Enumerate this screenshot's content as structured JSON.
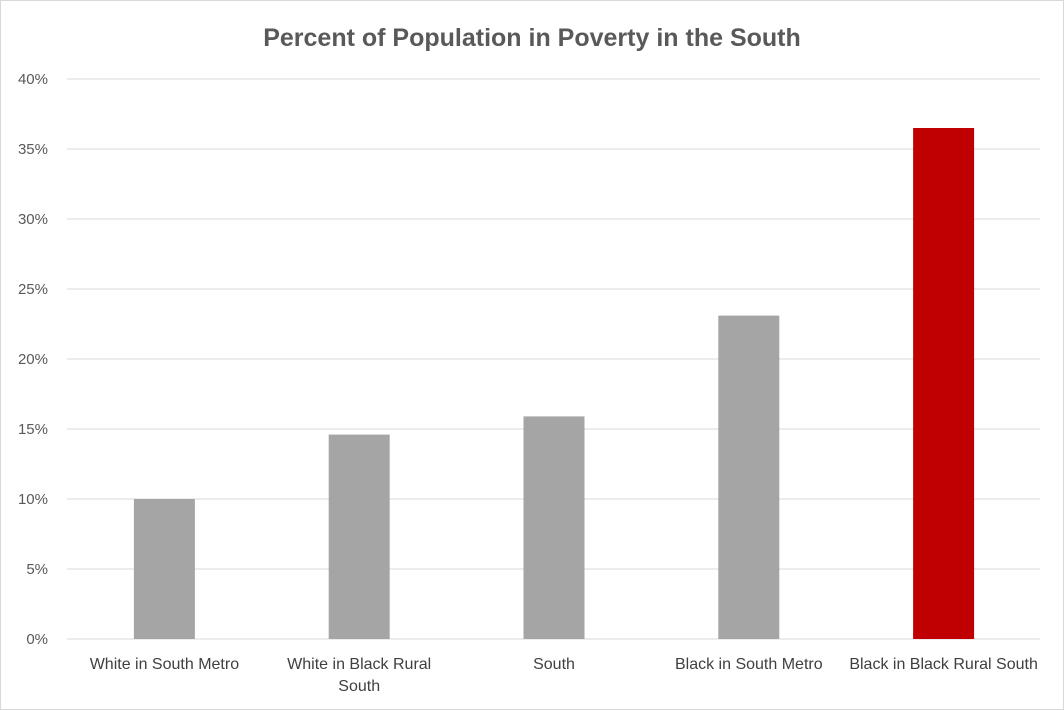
{
  "chart_data": {
    "type": "bar",
    "title": "Percent of Population in Poverty in the South",
    "xlabel": "",
    "ylabel": "",
    "categories": [
      "White in South Metro",
      "White in Black Rural South",
      "South",
      "Black in South Metro",
      "Black in Black Rural South"
    ],
    "category_lines": [
      [
        "White in South Metro"
      ],
      [
        "White in Black Rural",
        "South"
      ],
      [
        "South"
      ],
      [
        "Black in South Metro"
      ],
      [
        "Black in Black Rural South"
      ]
    ],
    "values": [
      10.0,
      14.6,
      15.9,
      23.1,
      36.5
    ],
    "value_unit": "%",
    "ylim": [
      0,
      40
    ],
    "yticks": [
      0,
      5,
      10,
      15,
      20,
      25,
      30,
      35,
      40
    ],
    "ytick_labels": [
      "0%",
      "5%",
      "10%",
      "15%",
      "20%",
      "25%",
      "30%",
      "35%",
      "40%"
    ],
    "grid": true,
    "legend": "none",
    "colors": {
      "default_bar": "#a5a5a5",
      "highlight_bar": "#c00000",
      "gridline": "#d9d9d9",
      "axis_text": "#595959",
      "title_text": "#595959"
    },
    "highlight_index": 4
  }
}
